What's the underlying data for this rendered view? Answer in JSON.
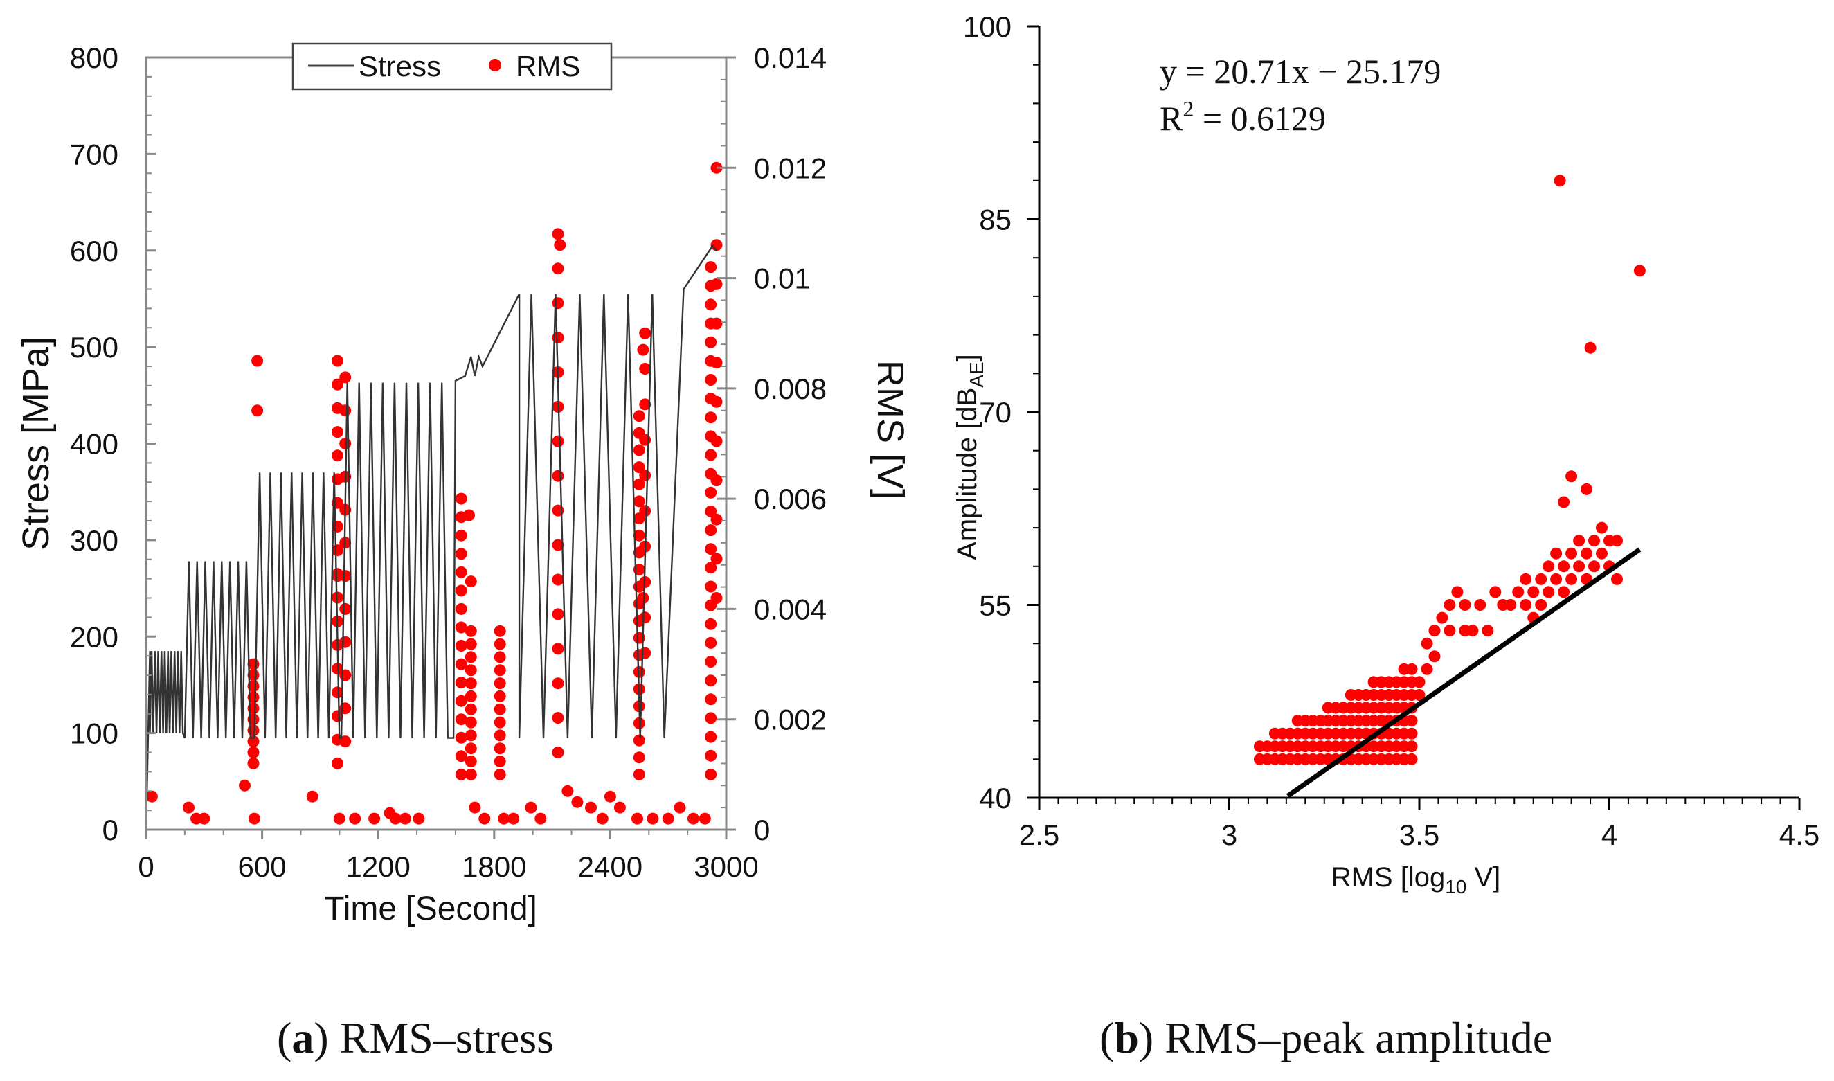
{
  "chart_data": [
    {
      "id": "a",
      "type": "line+scatter",
      "caption_letter": "a",
      "caption_text": "RMS–stress",
      "xlabel": "Time [Second]",
      "ylabel": "Stress [MPa]",
      "y2label": "RMS [V]",
      "xlim": [
        0,
        3000
      ],
      "ylim": [
        0,
        800
      ],
      "y2lim": [
        0,
        0.014
      ],
      "xticks": [
        "0",
        "600",
        "1200",
        "1800",
        "2400",
        "3000"
      ],
      "yticks": [
        "0",
        "100",
        "200",
        "300",
        "400",
        "500",
        "600",
        "700",
        "800"
      ],
      "y2ticks": [
        "0",
        "0.002",
        "0.004",
        "0.006",
        "0.008",
        "0.01",
        "0.012",
        "0.014"
      ],
      "legend": {
        "placement": "top-center",
        "stress_label": "Stress",
        "rms_label": "RMS"
      },
      "stress_blocks": [
        {
          "t_start": 20,
          "t_end": 190,
          "low": 100,
          "high": 185,
          "cycles": 10
        },
        {
          "t_start": 200,
          "t_end": 540,
          "low": 95,
          "high": 278,
          "cycles": 8
        },
        {
          "t_start": 560,
          "t_end": 1000,
          "low": 95,
          "high": 370,
          "cycles": 8
        },
        {
          "t_start": 1010,
          "t_end": 1560,
          "low": 95,
          "high": 463,
          "cycles": 9
        },
        {
          "t_start": 1930,
          "t_end": 2680,
          "low": 95,
          "high": 555,
          "cycles": 6
        }
      ],
      "stress_segments": [
        {
          "t": [
            0,
            20
          ],
          "s": [
            0,
            185
          ]
        },
        {
          "t": [
            1590,
            1600,
            1650,
            1680,
            1700,
            1720,
            1740,
            1930
          ],
          "s": [
            95,
            465,
            470,
            490,
            470,
            490,
            480,
            555
          ]
        },
        {
          "t": [
            2680,
            2780,
            2930,
            2950
          ],
          "s": [
            95,
            560,
            605,
            600
          ]
        }
      ],
      "rms_columns": [
        {
          "t": 555,
          "v_min": 0.0012,
          "v_max": 0.003,
          "count": 10
        },
        {
          "t": 990,
          "v_min": 0.0012,
          "v_max": 0.0085,
          "count": 18
        },
        {
          "t": 1030,
          "v_min": 0.0016,
          "v_max": 0.0082,
          "count": 12
        },
        {
          "t": 1630,
          "v_min": 0.001,
          "v_max": 0.006,
          "count": 16
        },
        {
          "t": 1680,
          "v_min": 0.001,
          "v_max": 0.0036,
          "count": 12
        },
        {
          "t": 1830,
          "v_min": 0.001,
          "v_max": 0.0036,
          "count": 12
        },
        {
          "t": 2130,
          "v_min": 0.0014,
          "v_max": 0.0108,
          "count": 16
        },
        {
          "t": 2550,
          "v_min": 0.001,
          "v_max": 0.0075,
          "count": 22
        },
        {
          "t": 2580,
          "v_min": 0.0032,
          "v_max": 0.009,
          "count": 10
        },
        {
          "t": 2920,
          "v_min": 0.001,
          "v_max": 0.0102,
          "count": 28
        },
        {
          "t": 2950,
          "v_min": 0.0042,
          "v_max": 0.0106,
          "count": 10
        }
      ],
      "rms_points": [
        [
          30,
          0.0006
        ],
        [
          220,
          0.0004
        ],
        [
          260,
          0.0002
        ],
        [
          300,
          0.0002
        ],
        [
          510,
          0.0008
        ],
        [
          560,
          0.0002
        ],
        [
          860,
          0.0006
        ],
        [
          1000,
          0.0002
        ],
        [
          1080,
          0.0002
        ],
        [
          1180,
          0.0002
        ],
        [
          1260,
          0.0003
        ],
        [
          1290,
          0.0002
        ],
        [
          1340,
          0.0002
        ],
        [
          1410,
          0.0002
        ],
        [
          1700,
          0.0004
        ],
        [
          1750,
          0.0002
        ],
        [
          1850,
          0.0002
        ],
        [
          1900,
          0.0002
        ],
        [
          1990,
          0.0004
        ],
        [
          2040,
          0.0002
        ],
        [
          2180,
          0.0007
        ],
        [
          2230,
          0.0005
        ],
        [
          2300,
          0.0004
        ],
        [
          2360,
          0.0002
        ],
        [
          2400,
          0.0006
        ],
        [
          2450,
          0.0004
        ],
        [
          2540,
          0.0002
        ],
        [
          2620,
          0.0002
        ],
        [
          2700,
          0.0002
        ],
        [
          2760,
          0.0004
        ],
        [
          2830,
          0.0002
        ],
        [
          2890,
          0.0002
        ],
        [
          2950,
          0.012
        ],
        [
          2570,
          0.0087
        ],
        [
          2140,
          0.0106
        ],
        [
          575,
          0.0085
        ],
        [
          575,
          0.0076
        ],
        [
          990,
          0.0046
        ],
        [
          1670,
          0.0057
        ],
        [
          1680,
          0.0045
        ],
        [
          2570,
          0.0042
        ]
      ]
    },
    {
      "id": "b",
      "type": "scatter",
      "caption_letter": "b",
      "caption_text": "RMS–peak amplitude",
      "xlabel_main": "RMS [log",
      "xlabel_sub": "10",
      "xlabel_end": " V]",
      "ylabel_main": "Amplitude [dB",
      "ylabel_sub": "AE",
      "ylabel_end": "]",
      "xlim": [
        2.5,
        4.5
      ],
      "ylim": [
        40,
        100
      ],
      "xticks": [
        "2.5",
        "3",
        "3.5",
        "4",
        "4.5"
      ],
      "yticks": [
        "40",
        "55",
        "70",
        "85",
        "100"
      ],
      "equation": "y = 20.71x − 25.179",
      "r2_label": "R",
      "r2_sup": "2",
      "r2_value": " = 0.6129",
      "fit": {
        "slope": 20.71,
        "intercept": -25.179,
        "x_from": 3.154,
        "x_to": 4.08
      },
      "cluster": {
        "x_from": 3.08,
        "x_to": 3.48,
        "x_step": 0.02,
        "y_min": 43,
        "y_top_start": 44,
        "y_top_end": 50
      },
      "points": [
        [
          3.5,
          49
        ],
        [
          3.5,
          48
        ],
        [
          3.52,
          50
        ],
        [
          3.52,
          52
        ],
        [
          3.54,
          51
        ],
        [
          3.54,
          53
        ],
        [
          3.56,
          54
        ],
        [
          3.58,
          53
        ],
        [
          3.58,
          55
        ],
        [
          3.6,
          56
        ],
        [
          3.62,
          53
        ],
        [
          3.62,
          55
        ],
        [
          3.64,
          53
        ],
        [
          3.66,
          55
        ],
        [
          3.68,
          53
        ],
        [
          3.7,
          56
        ],
        [
          3.72,
          55
        ],
        [
          3.74,
          55
        ],
        [
          3.76,
          56
        ],
        [
          3.78,
          55
        ],
        [
          3.78,
          57
        ],
        [
          3.8,
          54
        ],
        [
          3.8,
          56
        ],
        [
          3.82,
          55
        ],
        [
          3.82,
          57
        ],
        [
          3.84,
          56
        ],
        [
          3.84,
          58
        ],
        [
          3.86,
          57
        ],
        [
          3.86,
          59
        ],
        [
          3.88,
          56
        ],
        [
          3.88,
          58
        ],
        [
          3.9,
          57
        ],
        [
          3.9,
          59
        ],
        [
          3.92,
          58
        ],
        [
          3.92,
          60
        ],
        [
          3.94,
          57
        ],
        [
          3.94,
          59
        ],
        [
          3.96,
          58
        ],
        [
          3.96,
          60
        ],
        [
          3.98,
          59
        ],
        [
          3.98,
          61
        ],
        [
          4.0,
          58
        ],
        [
          4.0,
          60
        ],
        [
          4.02,
          57
        ],
        [
          4.02,
          60
        ],
        [
          3.88,
          63
        ],
        [
          3.9,
          65
        ],
        [
          3.94,
          64
        ],
        [
          3.87,
          88
        ],
        [
          3.95,
          75
        ],
        [
          4.08,
          81
        ]
      ]
    }
  ]
}
